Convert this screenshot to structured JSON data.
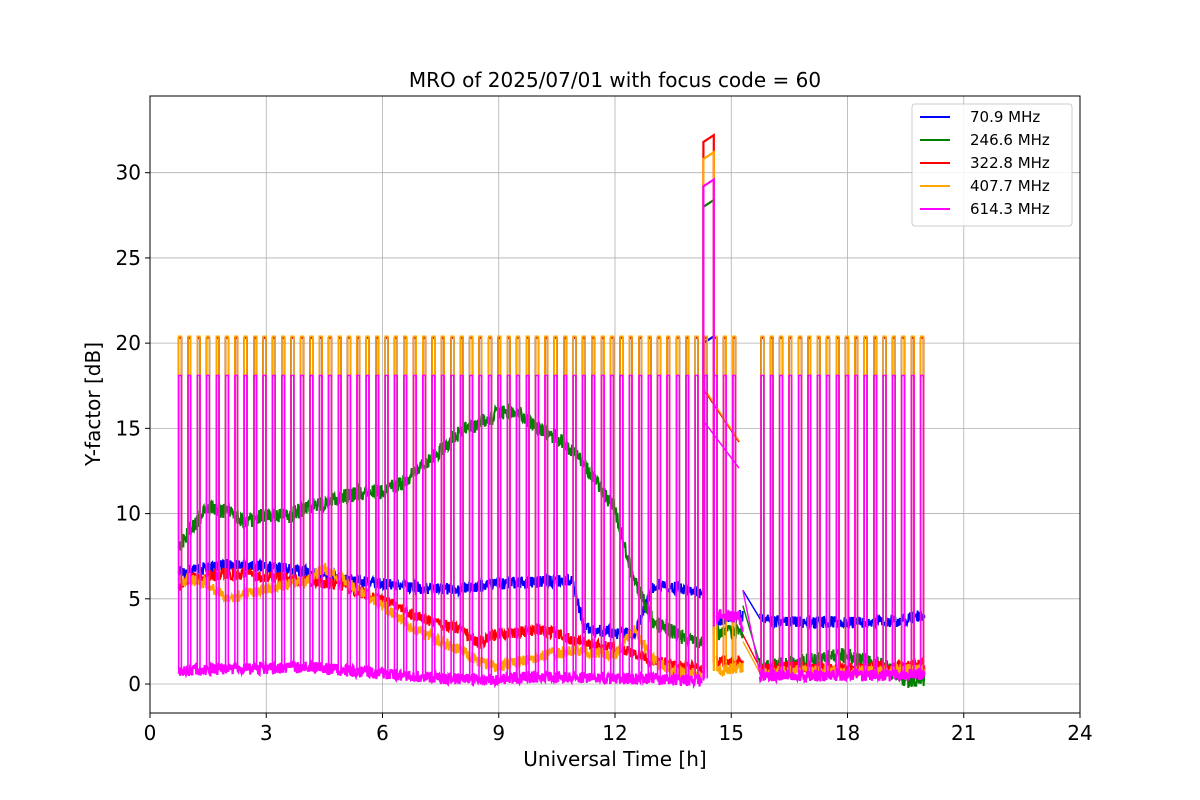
{
  "chart_data": {
    "type": "line",
    "title": "MRO of 2025/07/01 with focus code = 60",
    "xlabel": "Universal Time [h]",
    "ylabel": "Y-factor [dB]",
    "xlim": [
      0,
      24
    ],
    "ylim": [
      -1.7,
      34.5
    ],
    "xticks": [
      0,
      3,
      6,
      9,
      12,
      15,
      18,
      21,
      24
    ],
    "yticks": [
      0,
      5,
      10,
      15,
      20,
      25,
      30
    ],
    "grid": true,
    "legend_position": "top-right",
    "calibration_pulses": {
      "start_hours": [
        0.74,
        0.98,
        1.22,
        1.46,
        1.71,
        1.95,
        2.19,
        2.43,
        2.68,
        2.92,
        3.16,
        3.4,
        3.64,
        3.89,
        4.13,
        4.37,
        4.61,
        4.86,
        5.1,
        5.34,
        5.58,
        5.83,
        6.07,
        6.31,
        6.55,
        6.8,
        7.04,
        7.28,
        7.52,
        7.77,
        8.01,
        8.25,
        8.49,
        8.74,
        8.98,
        9.22,
        9.46,
        9.71,
        9.95,
        10.19,
        10.43,
        10.68,
        10.92,
        11.16,
        11.4,
        11.65,
        11.89,
        12.13,
        12.37,
        12.62,
        12.86,
        13.1,
        13.34,
        13.59,
        13.83,
        14.07,
        14.31,
        14.56,
        14.8,
        15.04,
        15.77,
        16.01,
        16.25,
        16.49,
        16.74,
        16.98,
        17.22,
        17.46,
        17.71,
        17.95,
        18.19,
        18.43,
        18.68,
        18.92,
        19.16,
        19.4,
        19.65,
        19.89
      ],
      "width_hours": 0.07,
      "levels": {
        "70.9 MHz": 20.3,
        "246.6 MHz": 20.3,
        "322.8 MHz": 20.3,
        "407.7 MHz": 20.4,
        "614.3 MHz": 18.1
      }
    },
    "spike": {
      "x": [
        14.28,
        14.55
      ],
      "values": {
        "70.9 MHz": 20.0,
        "246.6 MHz": 28.0,
        "322.8 MHz": 31.8,
        "407.7 MHz": 30.8,
        "614.3 MHz": 29.2
      }
    },
    "series": [
      {
        "name": " 70.9 MHz",
        "color": "#0000ff",
        "x": [
          0.74,
          1,
          2,
          3,
          4,
          5,
          6,
          7,
          8,
          9,
          10,
          10.9,
          11.2,
          12,
          12.5,
          13,
          14,
          14.3,
          14.6,
          15.2,
          15.75,
          16,
          17,
          18,
          19,
          19.5,
          20
        ],
        "y": [
          6.5,
          6.6,
          7.0,
          6.9,
          6.6,
          6.2,
          5.9,
          5.6,
          5.6,
          5.9,
          6.0,
          6.1,
          3.3,
          3.0,
          2.9,
          5.8,
          5.5,
          5.3,
          3.7,
          4.0,
          3.8,
          3.7,
          3.6,
          3.6,
          3.6,
          3.8,
          4.1
        ]
      },
      {
        "name": "246.6 MHz",
        "color": "#008000",
        "x": [
          0.74,
          1,
          1.5,
          2,
          2.5,
          3,
          3.5,
          4,
          4.5,
          5,
          5.5,
          6,
          6.5,
          7,
          7.5,
          8,
          8.5,
          9,
          9.4,
          10,
          10.5,
          11,
          11.5,
          12,
          12.5,
          13,
          14,
          14.3,
          14.6,
          15.2,
          15.75,
          16,
          17,
          18,
          19,
          19.5,
          20
        ],
        "y": [
          8.0,
          9.0,
          10.3,
          10.1,
          9.5,
          10.0,
          9.8,
          10.3,
          10.6,
          11.0,
          11.2,
          11.3,
          11.8,
          12.7,
          13.7,
          14.8,
          15.3,
          15.9,
          16.1,
          15.0,
          14.5,
          13.5,
          12.0,
          10.2,
          6.0,
          3.6,
          2.5,
          2.3,
          3.0,
          3.1,
          1.1,
          1.0,
          1.4,
          1.7,
          1.0,
          0.2,
          0.3
        ]
      },
      {
        "name": "322.8 MHz",
        "color": "#ff0000",
        "x": [
          0.74,
          1,
          2,
          3,
          4,
          5,
          6,
          6.5,
          7,
          8,
          8.5,
          9,
          9.5,
          10,
          10.5,
          11,
          12,
          12.5,
          13,
          14,
          14.3,
          14.6,
          15.2,
          15.75,
          16,
          17,
          18,
          19,
          20
        ],
        "y": [
          5.8,
          6.1,
          6.5,
          6.3,
          6.1,
          5.8,
          4.9,
          4.4,
          3.9,
          3.2,
          2.4,
          3.0,
          3.0,
          3.2,
          3.0,
          2.5,
          2.1,
          1.8,
          1.3,
          1.0,
          0.9,
          1.3,
          1.4,
          0.9,
          1.0,
          1.0,
          0.9,
          1.0,
          1.1
        ]
      },
      {
        "name": "407.7 MHz",
        "color": "#ffa500",
        "x": [
          0.74,
          1,
          1.5,
          2,
          3,
          4,
          4.5,
          5,
          6,
          7,
          8,
          8.5,
          9,
          10,
          11,
          12,
          12.5,
          12.8,
          13,
          13.5,
          14,
          14.3,
          14.6,
          15.2,
          15.75,
          16,
          17,
          18,
          19,
          20
        ],
        "y": [
          6.0,
          6.2,
          5.8,
          5.0,
          5.6,
          6.0,
          6.8,
          6.1,
          4.6,
          3.0,
          2.0,
          1.3,
          1.0,
          1.6,
          2.0,
          1.7,
          3.3,
          2.0,
          1.4,
          0.8,
          0.6,
          0.6,
          0.8,
          1.0,
          0.6,
          0.7,
          0.8,
          0.7,
          0.8,
          0.9
        ]
      },
      {
        "name": "614.3 MHz",
        "color": "#ff00ff",
        "x": [
          0.74,
          2,
          3,
          4,
          5,
          6,
          7,
          8,
          9,
          10,
          11,
          12,
          13,
          14,
          14.3,
          14.6,
          15.2,
          15.75,
          17,
          18,
          19,
          20
        ],
        "y": [
          0.8,
          0.9,
          0.9,
          1.0,
          0.8,
          0.6,
          0.4,
          0.3,
          0.3,
          0.4,
          0.4,
          0.3,
          0.3,
          0.2,
          0.2,
          4.0,
          4.0,
          0.5,
          0.5,
          0.5,
          0.5,
          0.6
        ]
      }
    ]
  }
}
